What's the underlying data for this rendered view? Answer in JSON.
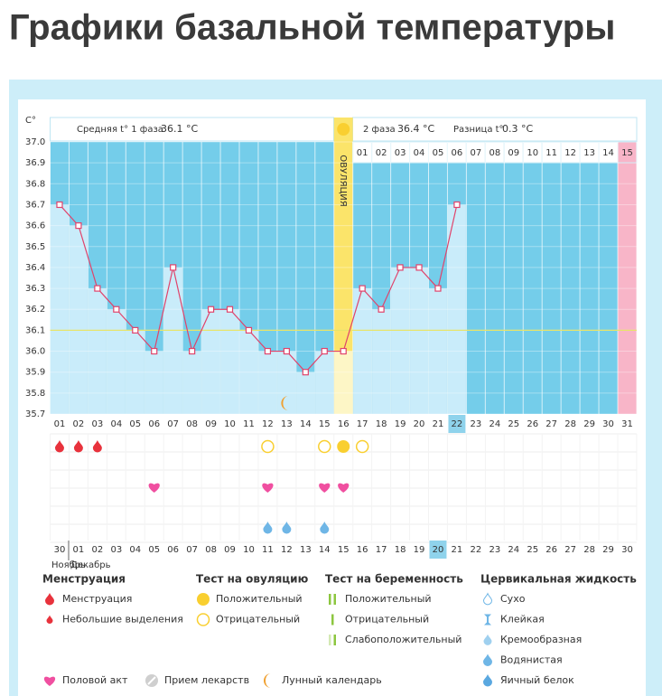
{
  "title": "Графики базальной температуры",
  "chart_data": {
    "type": "line",
    "y_unit": "C°",
    "summary": {
      "phase1_label": "Средняя t° 1 фаза",
      "phase1_value": "36.1 °C",
      "phase2_label": "2 фаза",
      "phase2_value": "36.4 °C",
      "diff_label": "Разница t°",
      "diff_value": "0.3 °C"
    },
    "ovulation_label": "ОВУЛЯЦИЯ",
    "ovulation_day": 16,
    "highlight_day": 22,
    "pink_day": 31,
    "coverline": 36.1,
    "categories": [
      "01",
      "02",
      "03",
      "04",
      "05",
      "06",
      "07",
      "08",
      "09",
      "10",
      "11",
      "12",
      "13",
      "14",
      "15",
      "16",
      "17",
      "18",
      "19",
      "20",
      "21",
      "22",
      "23",
      "24",
      "25",
      "26",
      "27",
      "28",
      "29",
      "30",
      "31"
    ],
    "phase2_days": [
      "01",
      "02",
      "03",
      "04",
      "05",
      "06",
      "07",
      "08",
      "09",
      "10",
      "11",
      "12",
      "13",
      "14",
      "15"
    ],
    "dates": [
      {
        "label": "30",
        "weekend": false
      },
      {
        "label": "01",
        "weekend": true
      },
      {
        "label": "02",
        "weekend": true
      },
      {
        "label": "03",
        "weekend": false
      },
      {
        "label": "04",
        "weekend": false
      },
      {
        "label": "05",
        "weekend": false
      },
      {
        "label": "06",
        "weekend": false
      },
      {
        "label": "07",
        "weekend": false
      },
      {
        "label": "08",
        "weekend": true
      },
      {
        "label": "09",
        "weekend": true
      },
      {
        "label": "10",
        "weekend": false
      },
      {
        "label": "11",
        "weekend": false
      },
      {
        "label": "12",
        "weekend": false
      },
      {
        "label": "13",
        "weekend": false
      },
      {
        "label": "14",
        "weekend": false
      },
      {
        "label": "15",
        "weekend": true
      },
      {
        "label": "16",
        "weekend": true
      },
      {
        "label": "17",
        "weekend": false
      },
      {
        "label": "18",
        "weekend": false
      },
      {
        "label": "19",
        "weekend": false
      },
      {
        "label": "20",
        "weekend": false
      },
      {
        "label": "21",
        "weekend": false
      },
      {
        "label": "22",
        "weekend": true
      },
      {
        "label": "23",
        "weekend": true
      },
      {
        "label": "24",
        "weekend": false
      },
      {
        "label": "25",
        "weekend": false
      },
      {
        "label": "26",
        "weekend": false
      },
      {
        "label": "27",
        "weekend": false
      },
      {
        "label": "28",
        "weekend": false
      },
      {
        "label": "29",
        "weekend": true
      },
      {
        "label": "30",
        "weekend": true
      }
    ],
    "months": [
      "Ноябрь",
      "Декабрь"
    ],
    "weekend_color": "#e8365f",
    "color": "#e0436b",
    "values": [
      36.7,
      36.6,
      36.3,
      36.2,
      36.1,
      36.0,
      36.4,
      36.0,
      36.2,
      36.2,
      36.1,
      36.0,
      36.0,
      35.9,
      36.0,
      36.0,
      36.3,
      36.2,
      36.4,
      36.4,
      36.3,
      36.7,
      null,
      null,
      null,
      null,
      null,
      null,
      null,
      null,
      null
    ],
    "ylim": [
      35.7,
      37.0
    ],
    "yticks": [
      {
        "value": 37,
        "label": "37.0"
      },
      36.9,
      36.8,
      36.7,
      36.6,
      36.5,
      36.4,
      36.3,
      36.2,
      36.1,
      {
        "value": 36,
        "label": "36.0"
      },
      35.9,
      35.8,
      35.7
    ],
    "grid": true
  },
  "legend": {
    "groups": [
      {
        "title": "Менструация",
        "items": [
          {
            "label": "Менструация",
            "days": [
              1,
              2,
              3
            ]
          },
          {
            "label": "Небольшие выделения"
          }
        ]
      },
      {
        "title": "Тест на овуляцию",
        "items": [
          {
            "label": "Положительный",
            "days": [
              16
            ]
          },
          {
            "label": "Отрицательный",
            "days": [
              12,
              15,
              17
            ]
          }
        ]
      },
      {
        "title": "Тест на беременность",
        "items": [
          {
            "label": "Положительный"
          },
          {
            "label": "Отрицательный"
          },
          {
            "label": "Слабоположительный"
          }
        ]
      },
      {
        "title": "Цервикальная жидкость",
        "items": [
          {
            "label": "Сухо"
          },
          {
            "label": "Клейкая"
          },
          {
            "label": "Кремообразная"
          },
          {
            "label": "Водянистая",
            "days": [
              12,
              13,
              15
            ]
          },
          {
            "label": "Яичный белок"
          }
        ]
      }
    ],
    "extras": [
      {
        "label": "Половой акт",
        "days": [
          6,
          12,
          15,
          16
        ]
      },
      {
        "label": "Прием лекарств"
      },
      {
        "label": "Лунный календарь",
        "days": [
          13
        ]
      }
    ]
  }
}
